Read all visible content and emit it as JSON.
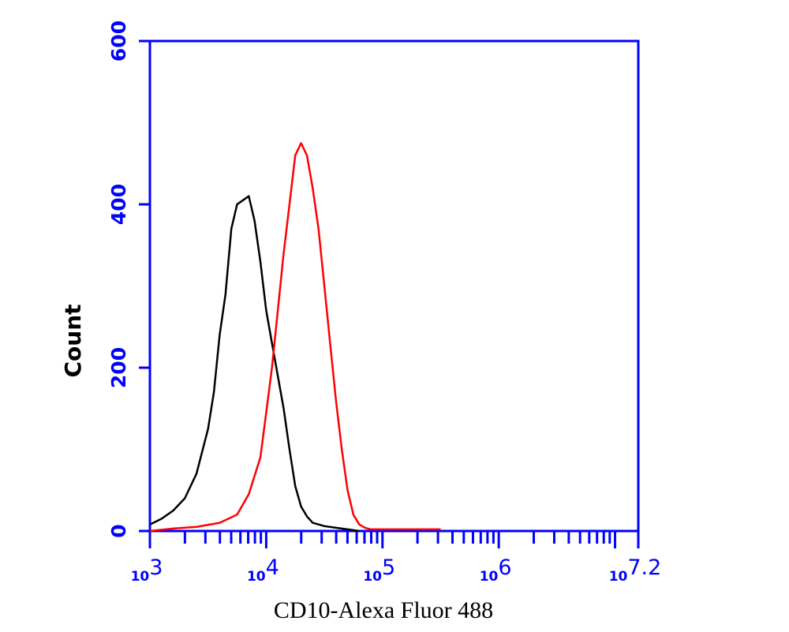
{
  "chart_data": {
    "type": "line",
    "title": "",
    "xlabel": "CD10-Alexa Fluor 488",
    "ylabel": "Count",
    "x_scale": "log10",
    "xlim": [
      1000,
      15848932
    ],
    "ylim": [
      0,
      600
    ],
    "y_ticks": [
      0,
      200,
      400,
      600
    ],
    "y_tick_labels": [
      "0",
      "200",
      "400",
      "600"
    ],
    "x_tick_labels": [
      {
        "base": "10",
        "exp": "3"
      },
      {
        "base": "10",
        "exp": "4"
      },
      {
        "base": "10",
        "exp": "5"
      },
      {
        "base": "10",
        "exp": "6"
      },
      {
        "base": "10",
        "exp": "7.2"
      }
    ],
    "grid": false,
    "legend": "none",
    "series": [
      {
        "color": "#000000",
        "x": [
          1000,
          1259,
          1585,
          1995,
          2512,
          3162,
          3548,
          3981,
          4467,
          5012,
          5623,
          6310,
          7079,
          7943,
          8913,
          10000,
          11220,
          12589,
          14125,
          15849,
          17783,
          19953,
          22387,
          25119,
          31623,
          39811,
          50119,
          63096
        ],
        "y": [
          8,
          15,
          25,
          40,
          70,
          125,
          170,
          240,
          290,
          370,
          400,
          405,
          410,
          380,
          330,
          270,
          230,
          190,
          150,
          100,
          55,
          30,
          18,
          10,
          6,
          4,
          2,
          0
        ]
      },
      {
        "color": "#ff0000",
        "x": [
          1000,
          1585,
          2512,
          3981,
          5623,
          7079,
          8913,
          10000,
          11220,
          12589,
          14125,
          15849,
          17783,
          19953,
          22387,
          25119,
          28184,
          31623,
          35481,
          39811,
          44668,
          50119,
          56234,
          63096,
          70795,
          79433,
          100000,
          158489,
          316228
        ],
        "y": [
          0,
          3,
          5,
          10,
          20,
          45,
          90,
          145,
          200,
          270,
          340,
          400,
          460,
          475,
          460,
          420,
          370,
          300,
          230,
          160,
          100,
          50,
          20,
          8,
          4,
          2,
          2,
          2,
          2
        ]
      }
    ]
  }
}
